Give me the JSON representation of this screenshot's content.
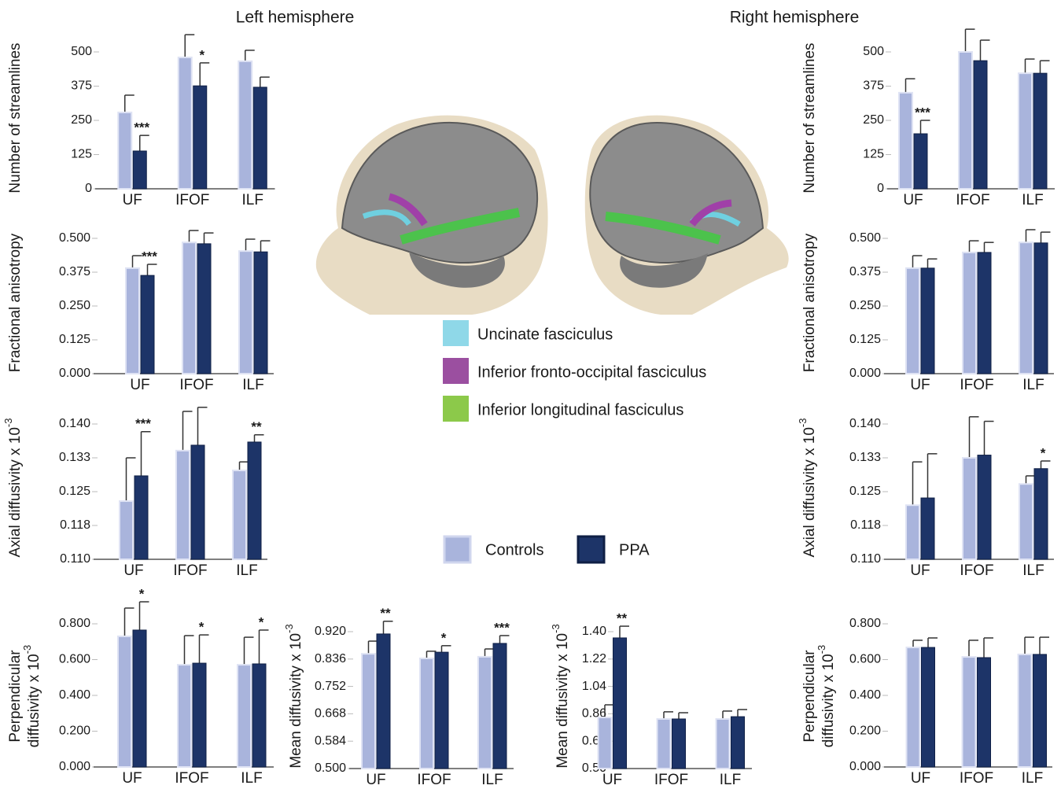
{
  "headers": [
    "Left hemisphere",
    "Right hemisphere"
  ],
  "legend": [
    {
      "name": "Controls",
      "color": "#a9b4dc"
    },
    {
      "name": "PPA",
      "color": "#1d3468"
    }
  ],
  "tract_legend": [
    {
      "name": "Uncinate fasciculus",
      "color": "#8fd8e8"
    },
    {
      "name": "Inferior fronto-occipital fasciculus",
      "color": "#9b4fa0"
    },
    {
      "name": "Inferior longitudinal fasciculus",
      "color": "#8cc94a"
    }
  ],
  "chart_data": [
    {
      "type": "bar",
      "y_label": [
        "Number of streamlines"
      ],
      "categories": [
        "UF",
        "IFOF",
        "ILF"
      ],
      "series": [
        {
          "color": "#a9b4dc",
          "values": [
            279,
            480,
            466
          ],
          "errors": [
            63,
            83,
            40
          ]
        },
        {
          "color": "#1d3468",
          "values": [
            138,
            376,
            371
          ],
          "errors": [
            57,
            84,
            37
          ]
        }
      ],
      "annotations": [
        "***",
        "*",
        null
      ],
      "ylim": [
        0,
        500
      ],
      "yticks": [
        0,
        125,
        250,
        375,
        500
      ]
    },
    {
      "type": "bar",
      "y_label": [
        "Fractional anisotropy"
      ],
      "categories": [
        "UF",
        "IFOF",
        "ILF"
      ],
      "series": [
        {
          "color": "#a9b4dc",
          "values": [
            0.39,
            0.485,
            0.453
          ],
          "errors": [
            0.046,
            0.044,
            0.044
          ]
        },
        {
          "color": "#1d3468",
          "values": [
            0.363,
            0.48,
            0.45
          ],
          "errors": [
            0.041,
            0.04,
            0.041
          ]
        }
      ],
      "annotations": [
        "***",
        null,
        null
      ],
      "ylim": [
        0,
        0.5
      ],
      "yticks": [
        {
          "value": 0,
          "label": "0.000"
        },
        {
          "value": 0.125,
          "label": "0.125"
        },
        {
          "value": 0.25,
          "label": "0.250"
        },
        {
          "value": 0.375,
          "label": "0.375"
        },
        {
          "value": 0.5,
          "label": "0.500"
        }
      ]
    },
    {
      "type": "bar",
      "y_label": [
        "Axial diffusivity x 10"
      ],
      "y_label_exponent": "-3",
      "categories": [
        "UF",
        "IFOF",
        "ILF"
      ],
      "series": [
        {
          "color": "#a9b4dc",
          "values": [
            0.1229,
            0.1341,
            0.1297
          ],
          "errors": [
            0.0096,
            0.0087,
            0.0019
          ]
        },
        {
          "color": "#1d3468",
          "values": [
            0.1285,
            0.1353,
            0.136
          ],
          "errors": [
            0.0098,
            0.0084,
            0.0016
          ]
        }
      ],
      "annotations": [
        "***",
        null,
        "**"
      ],
      "ylim": [
        0.11,
        0.14
      ],
      "yticks": [
        {
          "value": 0.11,
          "label": "0.110"
        },
        {
          "value": 0.1175,
          "label": "0.118"
        },
        {
          "value": 0.125,
          "label": "0.125"
        },
        {
          "value": 0.1325,
          "label": "0.133"
        },
        {
          "value": 0.14,
          "label": "0.140"
        }
      ]
    },
    {
      "type": "bar",
      "y_label": [
        "Perpendicular",
        "diffusivity x 10"
      ],
      "y_label_exponent": "-3",
      "categories": [
        "UF",
        "IFOF",
        "ILF"
      ],
      "series": [
        {
          "color": "#a9b4dc",
          "values": [
            0.73,
            0.571,
            0.571
          ],
          "errors": [
            0.158,
            0.163,
            0.154
          ]
        },
        {
          "color": "#1d3468",
          "values": [
            0.765,
            0.58,
            0.576
          ],
          "errors": [
            0.158,
            0.158,
            0.189
          ]
        }
      ],
      "annotations": [
        "*",
        "*",
        "*"
      ],
      "ylim": [
        0,
        0.8
      ],
      "yticks": [
        {
          "value": 0,
          "label": "0.000"
        },
        {
          "value": 0.2,
          "label": "0.200"
        },
        {
          "value": 0.4,
          "label": "0.400"
        },
        {
          "value": 0.6,
          "label": "0.600"
        },
        {
          "value": 0.8,
          "label": "0.800"
        }
      ]
    },
    {
      "type": "bar",
      "y_label": [
        "Mean diffusivity x 10"
      ],
      "y_label_exponent": "-3",
      "categories": [
        "UF",
        "IFOF",
        "ILF"
      ],
      "series": [
        {
          "color": "#a9b4dc",
          "values": [
            0.852,
            0.838,
            0.843
          ],
          "errors": [
            0.039,
            0.022,
            0.024
          ]
        },
        {
          "color": "#1d3468",
          "values": [
            0.913,
            0.857,
            0.884
          ],
          "errors": [
            0.039,
            0.02,
            0.024
          ]
        }
      ],
      "annotations": [
        "**",
        "*",
        "***"
      ],
      "ylim": [
        0.5,
        0.92
      ],
      "yticks": [
        {
          "value": 0.5,
          "label": "0.500"
        },
        0.584,
        0.668,
        0.752,
        0.836,
        {
          "value": 0.92,
          "label": "0.920"
        }
      ]
    },
    {
      "type": "bar",
      "y_label": [
        "Mean diffusivity x 10"
      ],
      "y_label_exponent": "-3",
      "categories": [
        "UF",
        "IFOF",
        "ILF"
      ],
      "series": [
        {
          "color": "#a9b4dc",
          "values": [
            0.836,
            0.826,
            0.826
          ],
          "errors": [
            0.083,
            0.047,
            0.052
          ]
        },
        {
          "color": "#1d3468",
          "values": [
            1.359,
            0.826,
            0.841
          ],
          "errors": [
            0.077,
            0.041,
            0.047
          ]
        }
      ],
      "annotations": [
        "**",
        null,
        null
      ],
      "ylim": [
        0.5,
        1.4
      ],
      "yticks": [
        {
          "value": 0.5,
          "label": "0.50"
        },
        0.68,
        0.86,
        1.04,
        1.22,
        {
          "value": 1.4,
          "label": "1.40"
        }
      ]
    },
    {
      "type": "bar",
      "y_label": [
        "Number of streamlines"
      ],
      "categories": [
        "UF",
        "IFOF",
        "ILF"
      ],
      "series": [
        {
          "color": "#a9b4dc",
          "values": [
            351,
            500,
            422
          ],
          "errors": [
            51,
            83,
            52
          ]
        },
        {
          "color": "#1d3468",
          "values": [
            201,
            468,
            422
          ],
          "errors": [
            49,
            75,
            46
          ]
        }
      ],
      "annotations": [
        "***",
        null,
        null
      ],
      "ylim": [
        0,
        500
      ],
      "yticks": [
        0,
        125,
        250,
        375,
        500
      ]
    },
    {
      "type": "bar",
      "y_label": [
        "Fractional anisotropy"
      ],
      "categories": [
        "UF",
        "IFOF",
        "ILF"
      ],
      "series": [
        {
          "color": "#a9b4dc",
          "values": [
            0.39,
            0.448,
            0.485
          ],
          "errors": [
            0.046,
            0.043,
            0.047
          ]
        },
        {
          "color": "#1d3468",
          "values": [
            0.39,
            0.448,
            0.483
          ],
          "errors": [
            0.034,
            0.037,
            0.04
          ]
        }
      ],
      "annotations": [
        null,
        null,
        null
      ],
      "ylim": [
        0,
        0.5
      ],
      "yticks": [
        {
          "value": 0,
          "label": "0.000"
        },
        {
          "value": 0.125,
          "label": "0.125"
        },
        {
          "value": 0.25,
          "label": "0.250"
        },
        {
          "value": 0.375,
          "label": "0.375"
        },
        {
          "value": 0.5,
          "label": "0.500"
        }
      ]
    },
    {
      "type": "bar",
      "y_label": [
        "Axial diffusivity x 10"
      ],
      "y_label_exponent": "-3",
      "categories": [
        "UF",
        "IFOF",
        "ILF"
      ],
      "series": [
        {
          "color": "#a9b4dc",
          "values": [
            0.122,
            0.1325,
            0.1267
          ],
          "errors": [
            0.0096,
            0.0091,
            0.0018
          ]
        },
        {
          "color": "#1d3468",
          "values": [
            0.1236,
            0.1331,
            0.1301
          ],
          "errors": [
            0.0098,
            0.0075,
            0.0017
          ]
        }
      ],
      "annotations": [
        null,
        null,
        "*"
      ],
      "ylim": [
        0.11,
        0.14
      ],
      "yticks": [
        {
          "value": 0.11,
          "label": "0.110"
        },
        {
          "value": 0.1175,
          "label": "0.118"
        },
        {
          "value": 0.125,
          "label": "0.125"
        },
        {
          "value": 0.1325,
          "label": "0.133"
        },
        {
          "value": 0.14,
          "label": "0.140"
        }
      ]
    },
    {
      "type": "bar",
      "y_label": [
        "Perpendicular",
        "diffusivity x 10"
      ],
      "y_label_exponent": "-3",
      "categories": [
        "UF",
        "IFOF",
        "ILF"
      ],
      "series": [
        {
          "color": "#a9b4dc",
          "values": [
            0.668,
            0.615,
            0.629
          ],
          "errors": [
            0.04,
            0.093,
            0.096
          ]
        },
        {
          "color": "#1d3468",
          "values": [
            0.668,
            0.611,
            0.629
          ],
          "errors": [
            0.053,
            0.11,
            0.096
          ]
        }
      ],
      "annotations": [
        null,
        null,
        null
      ],
      "ylim": [
        0,
        0.8
      ],
      "yticks": [
        {
          "value": 0,
          "label": "0.000"
        },
        {
          "value": 0.2,
          "label": "0.200"
        },
        {
          "value": 0.4,
          "label": "0.400"
        },
        {
          "value": 0.6,
          "label": "0.600"
        },
        {
          "value": 0.8,
          "label": "0.800"
        }
      ]
    }
  ]
}
